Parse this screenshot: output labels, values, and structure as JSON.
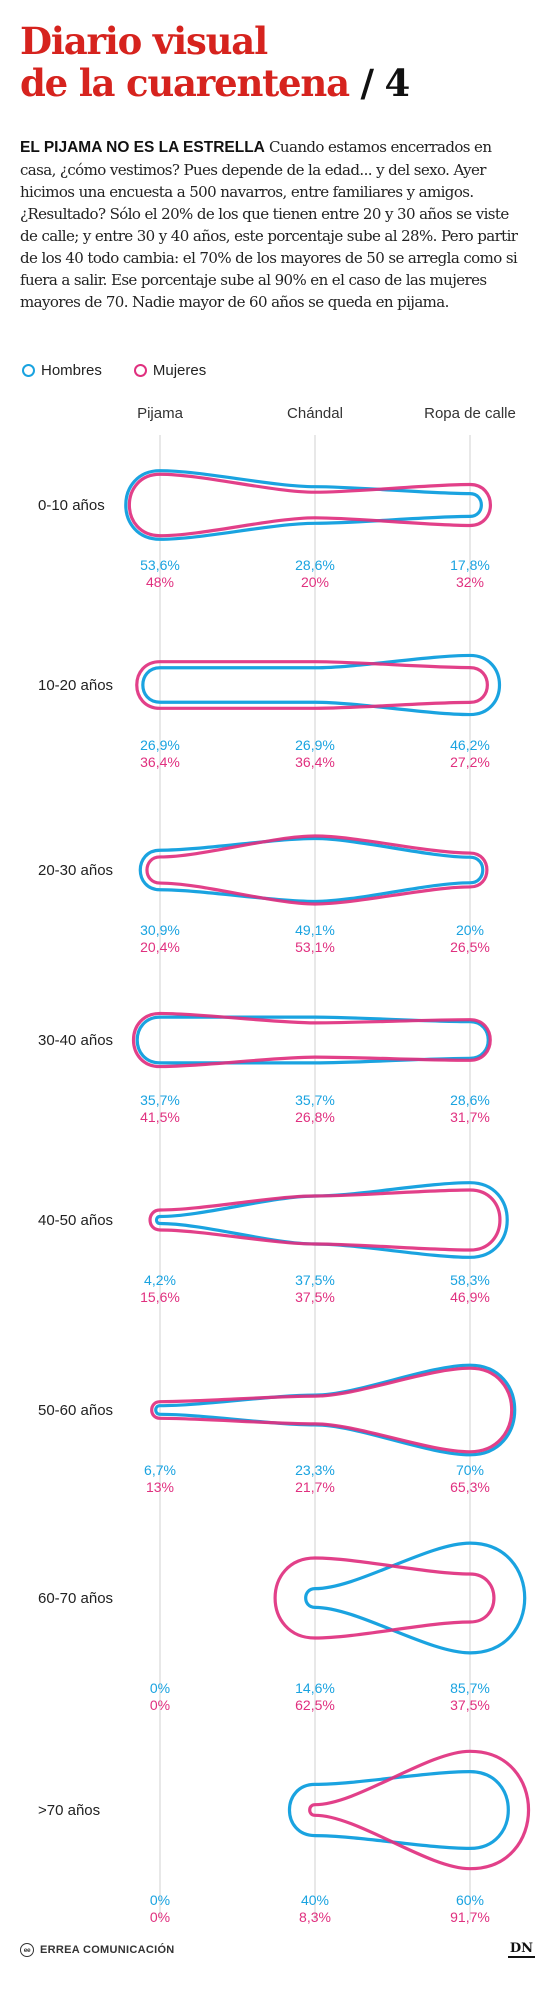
{
  "header": {
    "title_line1": "Diario visual",
    "title_line2": "de la cuarentena",
    "title_sep": " / ",
    "title_number": "4"
  },
  "intro": {
    "kicker": "EL PIJAMA NO ES LA ESTRELLA",
    "text": "Cuando estamos encerrados en casa, ¿cómo vestimos? Pues depende de la edad... y del sexo. Ayer hicimos una encuesta a 500 navarros, entre familiares y amigos. ¿Resultado? Sólo el 20% de los que tienen entre 20 y 30 años se viste de calle; y entre 30 y 40 años, este porcentaje sube al 28%. Pero partir de los 40 todo cambia: el 70% de los mayores de 50 se arregla como si fuera a salir. Ese porcentaje sube al 90% en el caso de las mujeres mayores de 70. Nadie mayor de 60 años se queda en pijama."
  },
  "colors": {
    "hombres": "#1aa3e0",
    "mujeres": "#e0307f",
    "title": "#d6231e",
    "axis": "#d9d9d9"
  },
  "chart_data": {
    "type": "line",
    "categories": [
      "Pijama",
      "Chándal",
      "Ropa de calle"
    ],
    "legend": "top-left",
    "series_names": [
      "Hombres",
      "Mujeres"
    ],
    "rows": [
      {
        "label": "0-10 años",
        "hombres": [
          "53,6%",
          "28,6%",
          "17,8%"
        ],
        "mujeres": [
          "48%",
          "20%",
          "32%"
        ],
        "h": [
          53.6,
          28.6,
          17.8
        ],
        "m": [
          48,
          20,
          32
        ]
      },
      {
        "label": "10-20 años",
        "hombres": [
          "26,9%",
          "26,9%",
          "46,2%"
        ],
        "mujeres": [
          "36,4%",
          "36,4%",
          "27,2%"
        ],
        "h": [
          26.9,
          26.9,
          46.2
        ],
        "m": [
          36.4,
          36.4,
          27.2
        ]
      },
      {
        "label": "20-30 años",
        "hombres": [
          "30,9%",
          "49,1%",
          "20%"
        ],
        "mujeres": [
          "20,4%",
          "53,1%",
          "26,5%"
        ],
        "h": [
          30.9,
          49.1,
          20
        ],
        "m": [
          20.4,
          53.1,
          26.5
        ]
      },
      {
        "label": "30-40 años",
        "hombres": [
          "35,7%",
          "35,7%",
          "28,6%"
        ],
        "mujeres": [
          "41,5%",
          "26,8%",
          "31,7%"
        ],
        "h": [
          35.7,
          35.7,
          28.6
        ],
        "m": [
          41.5,
          26.8,
          31.7
        ]
      },
      {
        "label": "40-50 años",
        "hombres": [
          "4,2%",
          "37,5%",
          "58,3%"
        ],
        "mujeres": [
          "15,6%",
          "37,5%",
          "46,9%"
        ],
        "h": [
          4.2,
          37.5,
          58.3
        ],
        "m": [
          15.6,
          37.5,
          46.9
        ]
      },
      {
        "label": "50-60 años",
        "hombres": [
          "6,7%",
          "23,3%",
          "70%"
        ],
        "mujeres": [
          "13%",
          "21,7%",
          "65,3%"
        ],
        "h": [
          6.7,
          23.3,
          70
        ],
        "m": [
          13,
          21.7,
          65.3
        ]
      },
      {
        "label": "60-70 años",
        "hombres": [
          "0%",
          "14,6%",
          "85,7%"
        ],
        "mujeres": [
          "0%",
          "62,5%",
          "37,5%"
        ],
        "h": [
          0,
          14.6,
          85.7
        ],
        "m": [
          0,
          62.5,
          37.5
        ]
      },
      {
        "label": ">70 años",
        "hombres": [
          "0%",
          "40%",
          "60%"
        ],
        "mujeres": [
          "0%",
          "8,3%",
          "91,7%"
        ],
        "h": [
          0,
          40,
          60
        ],
        "m": [
          0,
          8.3,
          91.7
        ]
      }
    ]
  },
  "footer": {
    "brand_icon": "ee",
    "brand": "ERREA COMUNICACIÓN",
    "logo": "DN"
  }
}
